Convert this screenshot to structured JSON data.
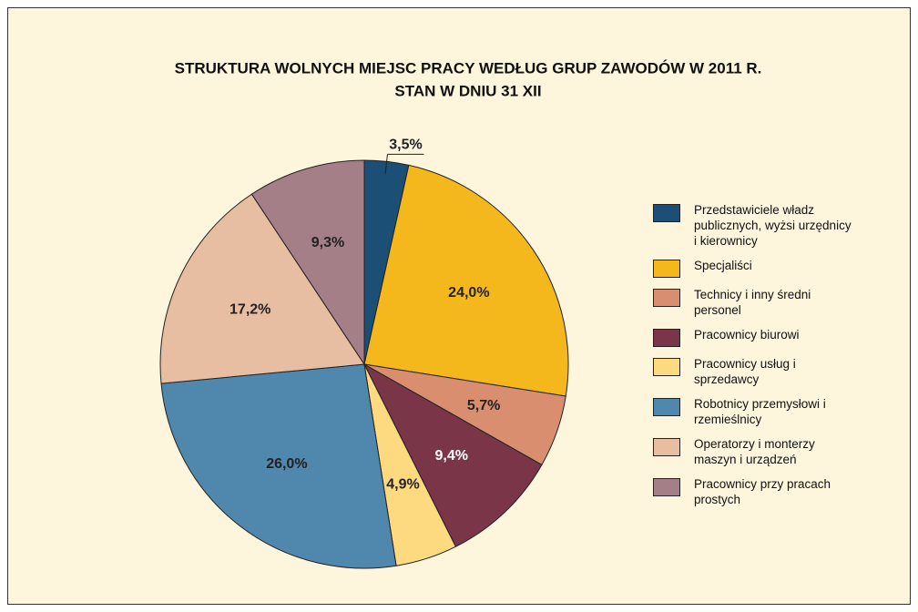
{
  "chart_data": {
    "type": "pie",
    "title": "STRUKTURA WOLNYCH MIEJSC PRACY WEDŁUG GRUP ZAWODÓW W 2011 R.",
    "subtitle": "STAN W DNIU 31 XII",
    "categories": [
      "Przedstawiciele władz publicznych, wyżsi urzędnicy i kierownicy",
      "Specjaliści",
      "Technicy i inny średni personel",
      "Pracownicy biurowi",
      "Pracownicy usług i sprzedawcy",
      "Robotnicy przemysłowi i rzemieślnicy",
      "Operatorzy i monterzy maszyn i urządzeń",
      "Pracownicy przy pracach prostych"
    ],
    "values": [
      3.5,
      24.0,
      5.7,
      9.4,
      4.9,
      26.0,
      17.2,
      9.3
    ],
    "value_labels": [
      "3,5%",
      "24,0%",
      "5,7%",
      "9,4%",
      "4,9%",
      "26,0%",
      "17,2%",
      "9,3%"
    ],
    "colors": [
      "#1b4f75",
      "#f4b71c",
      "#d98f6f",
      "#7a3549",
      "#fdd97f",
      "#5087ad",
      "#e8bea3",
      "#a57f87"
    ],
    "legend": "right"
  }
}
